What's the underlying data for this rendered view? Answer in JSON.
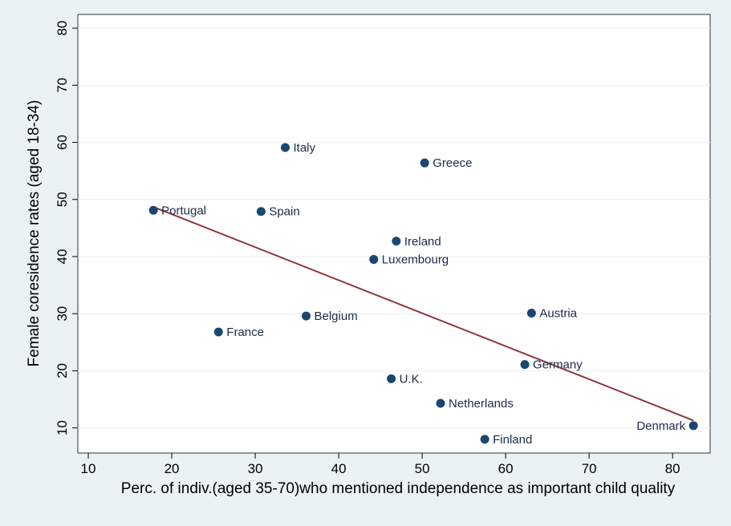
{
  "chart_data": {
    "type": "scatter",
    "x_label": "Perc. of indiv.(aged 35-70)who mentioned independence as important child quality",
    "y_label": "Female coresidence rates (aged 18-34)",
    "points": {
      "labels": [
        "Portugal",
        "Italy",
        "Greece",
        "Spain",
        "Ireland",
        "Luxembourg",
        "Belgium",
        "Austria",
        "France",
        "Germany",
        "U.K.",
        "Netherlands",
        "Finland",
        "Denmark"
      ],
      "x": [
        17.8,
        33.6,
        50.3,
        30.7,
        46.9,
        44.2,
        36.1,
        63.1,
        25.6,
        62.3,
        46.3,
        52.2,
        57.5,
        82.5
      ],
      "y": [
        48.1,
        59.1,
        56.4,
        47.9,
        42.7,
        39.5,
        29.6,
        30.1,
        26.8,
        21.1,
        18.6,
        14.3,
        8.0,
        10.4
      ],
      "color": "#1a476f"
    },
    "fit_line": {
      "x": [
        17.8,
        82.5
      ],
      "y": [
        48.7,
        11.3
      ],
      "color": "#90353b"
    },
    "xlim": [
      8.75,
      84.5
    ],
    "ylim": [
      5.6,
      82.4
    ],
    "xticks": [
      10,
      20,
      30,
      40,
      50,
      60,
      70,
      80
    ],
    "yticks": [
      10,
      20,
      30,
      40,
      50,
      60,
      70,
      80
    ],
    "grid": true
  }
}
